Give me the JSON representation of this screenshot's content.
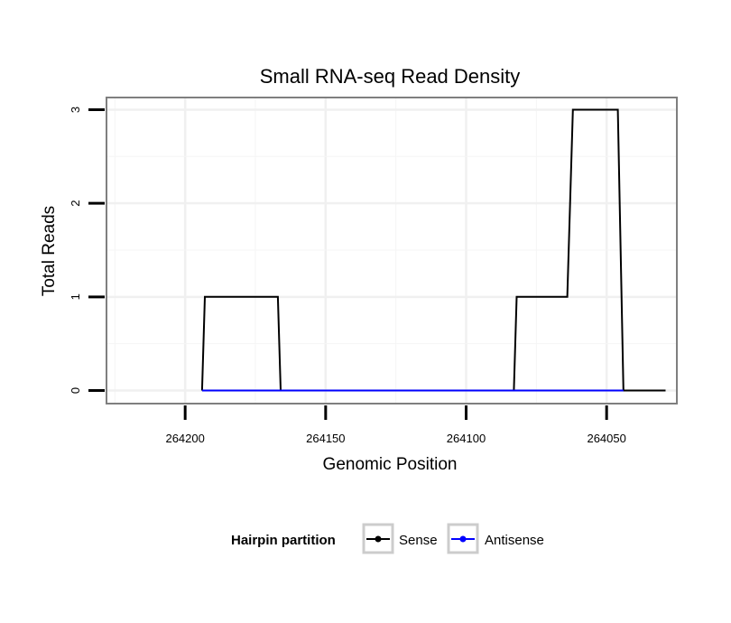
{
  "chart_data": {
    "type": "line",
    "title": "Small RNA-seq Read Density",
    "xlabel": "Genomic Position",
    "ylabel": "Total Reads",
    "x_reversed": true,
    "xlim": [
      264228,
      264025
    ],
    "ylim": [
      -0.14,
      3.13
    ],
    "x_ticks": [
      264200,
      264150,
      264100,
      264050
    ],
    "x_tick_labels": [
      "264200",
      "264150",
      "264100",
      "264050"
    ],
    "y_ticks": [
      0,
      1,
      2,
      3
    ],
    "y_tick_labels": [
      "0",
      "1",
      "2",
      "3"
    ],
    "grid": true,
    "legend": {
      "title": "Hairpin partition",
      "position": "bottom",
      "entries": [
        "Sense",
        "Antisense"
      ]
    },
    "series": [
      {
        "name": "Sense",
        "color": "#000000",
        "x": [
          264194,
          264193,
          264167,
          264166,
          264083,
          264082,
          264064,
          264062,
          264046,
          264044,
          264029
        ],
        "y": [
          0,
          1,
          1,
          0,
          0,
          1,
          1,
          3,
          3,
          0,
          0
        ]
      },
      {
        "name": "Antisense",
        "color": "#0000ff",
        "x": [
          264194,
          264166,
          264083,
          264044
        ],
        "y": [
          0,
          0,
          0,
          0
        ]
      }
    ]
  }
}
